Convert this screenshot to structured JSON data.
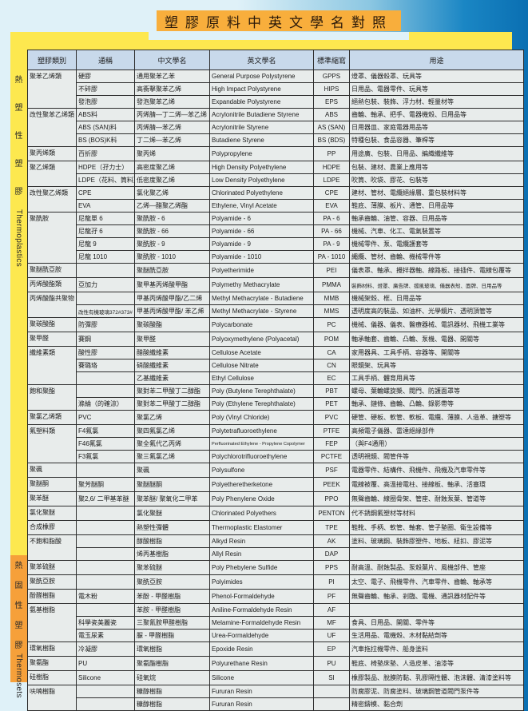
{
  "title": "塑膠原料中英文學名對照",
  "side_labels": {
    "thermoplastics_cn": [
      "熱",
      "塑",
      "性",
      "塑",
      "膠"
    ],
    "thermoplastics_en": "Thermoplastics",
    "thermosets_cn": [
      "熱",
      "固",
      "性",
      "塑",
      "膠"
    ],
    "thermosets_en": "Thermosets"
  },
  "colors": {
    "title_bg": "#f8ae3c",
    "thermoplastics_band": "#fde84f",
    "thermosets_band": "#f6a03a",
    "header_bg": "#c8d9eb",
    "cell_bg": "#e8eceb"
  },
  "headers": [
    "塑膠類別",
    "通稱",
    "中文學名",
    "英文學名",
    "標準縮寫",
    "用途"
  ],
  "groups": [
    {
      "category": "聚苯乙烯類",
      "rows": [
        [
          "硬膠",
          "通用聚苯乙苯",
          "General Purpose Polystyrene",
          "GPPS",
          "燈罩、儀器殼罩、玩具等"
        ],
        [
          "不碎膠",
          "高衝擊聚苯乙烯",
          "High Impact Polystyrene",
          "HIPS",
          "日用品、電器零件、玩具等"
        ],
        [
          "發泡膠",
          "發泡聚苯乙烯",
          "Expandable Polystyrene",
          "EPS",
          "絕熱包裝、裝飾、浮力材、輕量材等"
        ]
      ]
    },
    {
      "category": "改性聚苯乙烯類",
      "rows": [
        [
          "ABS料",
          "丙烯腈—丁二烯—苯乙烯",
          "Acrylonitrile Butadiene Styrene",
          "ABS",
          "齒輪、軸承、把手、電器機殼、日用品等"
        ],
        [
          "ABS (SAN)料",
          "丙烯腈—苯乙烯",
          "Acrylonitrile Styrene",
          "AS (SAN)",
          "日用器皿、家庭電器用品等"
        ],
        [
          "BS (BOS)K料",
          "丁二烯—苯乙烯",
          "Butadiene Styrene",
          "BS (BDS)",
          "特種包裝、食品容器、筆桿等"
        ]
      ]
    },
    {
      "category": "聚丙烯類",
      "rows": [
        [
          "百折膠",
          "聚丙烯",
          "Polypropylene",
          "PP",
          "用途廣、包裝、日用品、編織纖維等"
        ]
      ]
    },
    {
      "category": "聚乙烯類",
      "rows": [
        [
          "HDPE（孖力士）",
          "高密度聚乙烯",
          "High Density Polyethylene",
          "HDPE",
          "包裝、建材、農業上應用等"
        ],
        [
          "LDPE（花料、筒料）",
          "低密度聚乙烯",
          "Low Density Polyethylene",
          "LDPE",
          "吹筒、吹袋、膠花、包裝等"
        ]
      ]
    },
    {
      "category": "改性聚乙烯類",
      "rows": [
        [
          "CPE",
          "氯化聚乙烯",
          "Chlorinated Polyethylene",
          "CPE",
          "建材、管材、電纜絕緣層、重包裝材料等"
        ],
        [
          "EVA",
          "乙烯—醋聚乙烯酯",
          "Ethylene, Vinyl Acetate",
          "EVA",
          "鞋底、薄膜、板片、通管、日用品等"
        ]
      ]
    },
    {
      "category": "聚酰胺",
      "rows": [
        [
          "尼龍單 6",
          "聚酰胺 - 6",
          "Polyamide - 6",
          "PA - 6",
          "軸承齒輪、油管、容器、日用品等"
        ],
        [
          "尼龍孖 6",
          "聚酰胺 - 66",
          "Polyamide - 66",
          "PA - 66",
          "機械、汽車、化工、電氣裝置等"
        ],
        [
          "尼龍 9",
          "聚酰胺 - 9",
          "Polyamide - 9",
          "PA - 9",
          "機械零件、泵、電纜護套等"
        ],
        [
          "尼龍 1010",
          "聚酰胺 - 1010",
          "Polyamide - 1010",
          "PA - 1010",
          "繩纜、管材、齒輪、機械零件等"
        ]
      ]
    },
    {
      "category": "聚醚酰亞胺",
      "rows": [
        [
          "",
          "聚醚酰亞胺",
          "Polyetherimide",
          "PEI",
          "儀表罩、軸承、攪拌器軸、線路板、接插件、電線包覆等"
        ]
      ]
    },
    {
      "category": "丙烯酸酯類",
      "rows": [
        [
          "亞加力",
          "聚甲基丙烯酸甲酯",
          "Polymethy Methacrylate",
          "PMMA",
          "裝飾材料、燈罩、廣告牌、擋風玻璃、儀器表殼、面牌、日用品等"
        ]
      ]
    },
    {
      "category": "丙烯酸酯共聚物",
      "rows": [
        [
          "",
          "甲基丙烯酸甲酯/乙二烯",
          "Methyl Methacrylate - Butadiene",
          "MMB",
          "機械架殼、框、日用品等"
        ],
        [
          "改性有機玻璃372#373#",
          "甲基丙烯酸甲酯/ 苯乙烯",
          "Methyl Methacrylate - Styrene",
          "MMS",
          "透明度高的裝品、如油杯、光學鏡片、透明頂管等"
        ]
      ]
    },
    {
      "category": "聚碳酸酯",
      "rows": [
        [
          "防彈膠",
          "聚碳酸酯",
          "Polycarbonate",
          "PC",
          "機械、儀器、儀表、醫療器械、電訊器材、飛機工業等"
        ]
      ]
    },
    {
      "category": "聚甲醛",
      "rows": [
        [
          "賽鋼",
          "聚甲醛",
          "Polyoxymethylene (Polyacetal)",
          "POM",
          "軸承軸套、齒輪、凸輪、泵機、電器、開關等"
        ]
      ]
    },
    {
      "category": "纖維素類",
      "rows": [
        [
          "酸性膠",
          "醋酸纖維素",
          "Cellulose Acetate",
          "CA",
          "家用器具、工具手柄、容器等、開關等"
        ],
        [
          "賽璐珞",
          "硝酸纖維素",
          "Cellulose Nitrate",
          "CN",
          "眼鏡架、玩具等"
        ],
        [
          "",
          "乙基纖維素",
          "Ethyl Cellulose",
          "EC",
          "工具手柄、體育用具等"
        ]
      ]
    },
    {
      "category": "飽和聚酯",
      "rows": [
        [
          "",
          "聚對苯二甲酸丁二醇酯",
          "Poly (Butylene Terephthalate)",
          "PBT",
          "螺母、葉輪螺旋槳、閥門、防護面罩等"
        ],
        [
          "滌綸（的確涼）",
          "聚對苯二甲酸丁二醇酯",
          "Poly (Ethylene Terephthalate)",
          "PET",
          "軸承、鏈條、齒輪、凸輪、錄影帶等"
        ]
      ]
    },
    {
      "category": "聚氯乙烯類",
      "rows": [
        [
          "PVC",
          "聚氯乙烯",
          "Poly (Vinyl Chloride)",
          "PVC",
          "硬管、硬板、軟管、軟板、電纜、薄膜、人造革、搪塑等"
        ]
      ]
    },
    {
      "category": "氟塑料類",
      "rows": [
        [
          "F4氟氯",
          "聚四氟氯乙烯",
          "Polytetrafluoroethylene",
          "PTFE",
          "高頻電子儀器、雷達絕緣部件"
        ],
        [
          "F46氟氯",
          "聚全氟代乙丙烯",
          "Perfluorinated Ethylene - Propylene Copolymer",
          "FEP",
          "（與F4通用）"
        ],
        [
          "F3氟氯",
          "聚三氟氯乙烯",
          "Polychlorotrifluoroethylene",
          "PCTFE",
          "透明視鏡、閥管件等"
        ]
      ]
    },
    {
      "category": "聚碸",
      "rows": [
        [
          "",
          "聚碸",
          "Polysulfone",
          "PSF",
          "電器零件、結構件、飛機件、飛機及汽車零件等"
        ]
      ]
    },
    {
      "category": "聚醚酮",
      "rows": [
        [
          "聚芳醚酮",
          "聚醚醚酮",
          "Polyetheretherketone",
          "PEEK",
          "電線被覆、高溫接電柱、接線板、軸承、活塞環"
        ]
      ]
    },
    {
      "category": "聚苯醚",
      "rows": [
        [
          "聚2,6/ 二甲基苯醚",
          "聚苯醚/ 聚氧化二甲苯",
          "Poly Phenylene Oxide",
          "PPO",
          "無聲齒輪、線圈骨架、管座、耐蝕泵葉、管道等"
        ]
      ]
    },
    {
      "category": "氯化聚醚",
      "rows": [
        [
          "",
          "氯化聚醚",
          "Chlorinated Polyethers",
          "PENTON",
          "代不銹鋼氟塑材等材料"
        ]
      ]
    },
    {
      "category": "合成橡膠",
      "rows": [
        [
          "",
          "熱塑性彈體",
          "Thermoplastic Elastomer",
          "TPE",
          "鞋靴、手柄、軟管、軸套、管子墊圈、衛生設備等"
        ]
      ]
    },
    {
      "category": "不飽和脂酸",
      "rows": [
        [
          "",
          "醇酸樹脂",
          "Alkyd Resin",
          "AK",
          "塗料、玻璃鋼、裝飾膠塑件、地板、紐扣、膠泥等"
        ],
        [
          "",
          "烯丙基樹脂",
          "Allyl Resin",
          "DAP",
          ""
        ]
      ]
    },
    {
      "category": "聚苯硫醚",
      "rows": [
        [
          "",
          "聚苯硫醚",
          "Poly Phebylene Sulfide",
          "PPS",
          "耐高溫、耐蝕製品、泵殼葉片、風機部件、管座"
        ]
      ]
    },
    {
      "category": "聚酰亞胺",
      "rows": [
        [
          "",
          "聚酰亞胺",
          "Polyimides",
          "PI",
          "太空、電子、飛機零件、汽車零件、齒輪、軸承等"
        ]
      ]
    },
    {
      "category": "酚醛樹脂",
      "rows": [
        [
          "電木粉",
          "苯酚 - 甲醛樹脂",
          "Phenol-Formaldehyde",
          "PF",
          "無聲齒輪、軸承、剎臨、電機、通訊器材配件等"
        ]
      ]
    },
    {
      "category": "氨基樹脂",
      "rows": [
        [
          "",
          "苯胺 - 甲醛樹脂",
          "Aniline-Formaldehyde Resin",
          "AF",
          ""
        ],
        [
          "科學瓷美麗瓷",
          "三聚氰胺甲醛樹脂",
          "Melamine-Formaldehyde Resin",
          "MF",
          "食具、日用品、開關、零件等"
        ],
        [
          "電玉尿素",
          "脲 - 甲醛樹脂",
          "Urea-Formaldehyde",
          "UF",
          "生活用品、電機殼、木材黏結劑等"
        ]
      ]
    },
    {
      "category": "環氧樹脂",
      "rows": [
        [
          "冷凝膠",
          "環氧樹脂",
          "Epoxide Resin",
          "EP",
          "汽車拖拉機零件、船身塗料"
        ]
      ]
    },
    {
      "category": "聚氨酯",
      "rows": [
        [
          "PU",
          "聚氨酯樹脂",
          "Polyurethane Resin",
          "PU",
          "鞋底、椅墊床墊、人造皮革、油漆等"
        ]
      ]
    },
    {
      "category": "硅樹脂",
      "rows": [
        [
          "Silicone",
          "硅氧烷",
          "Silicone",
          "SI",
          "橡膠製品、脫膜防黏、乳膠隔性體、泡沫體、清漆塗料等"
        ]
      ]
    },
    {
      "category": "呋喃樹脂",
      "rows": [
        [
          "",
          "糠醇樹脂",
          "Fururan Resin",
          "",
          "防腐膠泥、防腐塗料、玻璃鋼管道閥門泵件等"
        ],
        [
          "",
          "糠醇樹脂",
          "Fururan Resin",
          "",
          "精密鑄模、黏合劑"
        ]
      ]
    }
  ]
}
